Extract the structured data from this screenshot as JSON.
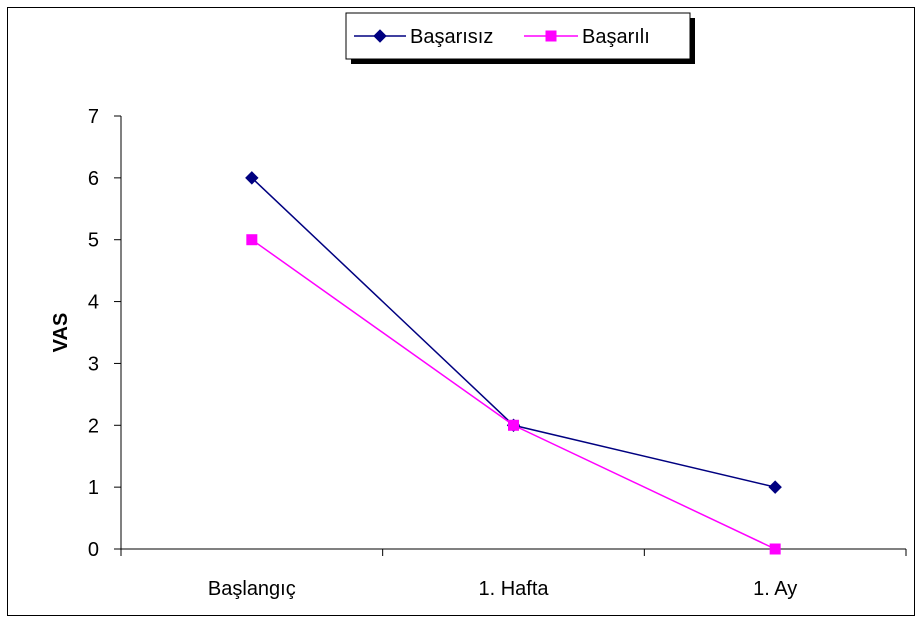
{
  "chart_data": {
    "type": "line",
    "categories": [
      "Başlangıç",
      "1. Hafta",
      "1. Ay"
    ],
    "series": [
      {
        "name": "Başarısız",
        "values": [
          6,
          2,
          1
        ],
        "color": "#000080",
        "marker": "diamond"
      },
      {
        "name": "Başarılı",
        "values": [
          5,
          2,
          0
        ],
        "color": "#ff00ff",
        "marker": "square"
      }
    ],
    "ylabel": "VAS",
    "ylim": [
      0,
      7
    ],
    "yticks": [
      "0",
      "1",
      "2",
      "3",
      "4",
      "5",
      "6",
      "7"
    ],
    "grid": false,
    "legend": "top"
  }
}
